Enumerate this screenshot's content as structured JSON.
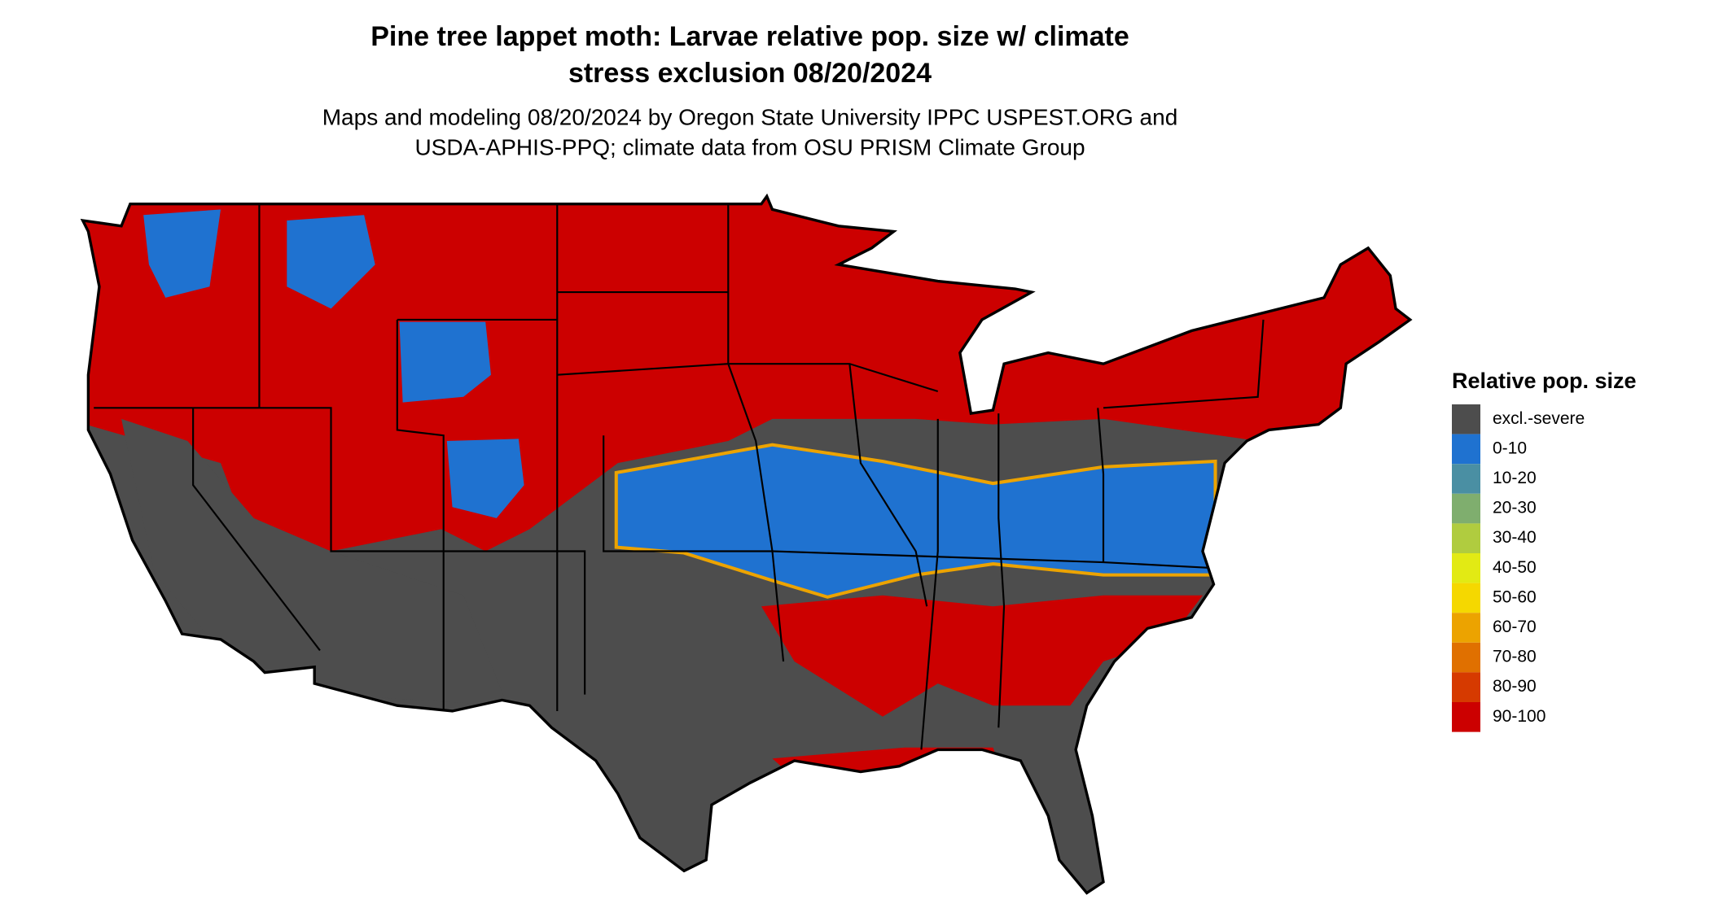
{
  "header": {
    "title": [
      "Pine tree lappet moth: Larvae relative pop. size w/ climate",
      "stress exclusion 08/20/2024"
    ],
    "subtitle": [
      "Maps and modeling 08/20/2024 by Oregon State University IPPC USPEST.ORG and",
      "USDA-APHIS-PPQ; climate data from OSU PRISM Climate Group"
    ]
  },
  "legend": {
    "title": "Relative pop. size",
    "items": [
      {
        "label": "excl.-severe",
        "color": "#4d4d4d"
      },
      {
        "label": "0-10",
        "color": "#1f72d0"
      },
      {
        "label": "10-20",
        "color": "#4a8fa3"
      },
      {
        "label": "20-30",
        "color": "#7fae6e"
      },
      {
        "label": "30-40",
        "color": "#b0cc3f"
      },
      {
        "label": "40-50",
        "color": "#e2ea14"
      },
      {
        "label": "50-60",
        "color": "#f5d800"
      },
      {
        "label": "60-70",
        "color": "#eca300"
      },
      {
        "label": "70-80",
        "color": "#e07000"
      },
      {
        "label": "80-90",
        "color": "#d63a00"
      },
      {
        "label": "90-100",
        "color": "#cc0000"
      }
    ]
  }
}
